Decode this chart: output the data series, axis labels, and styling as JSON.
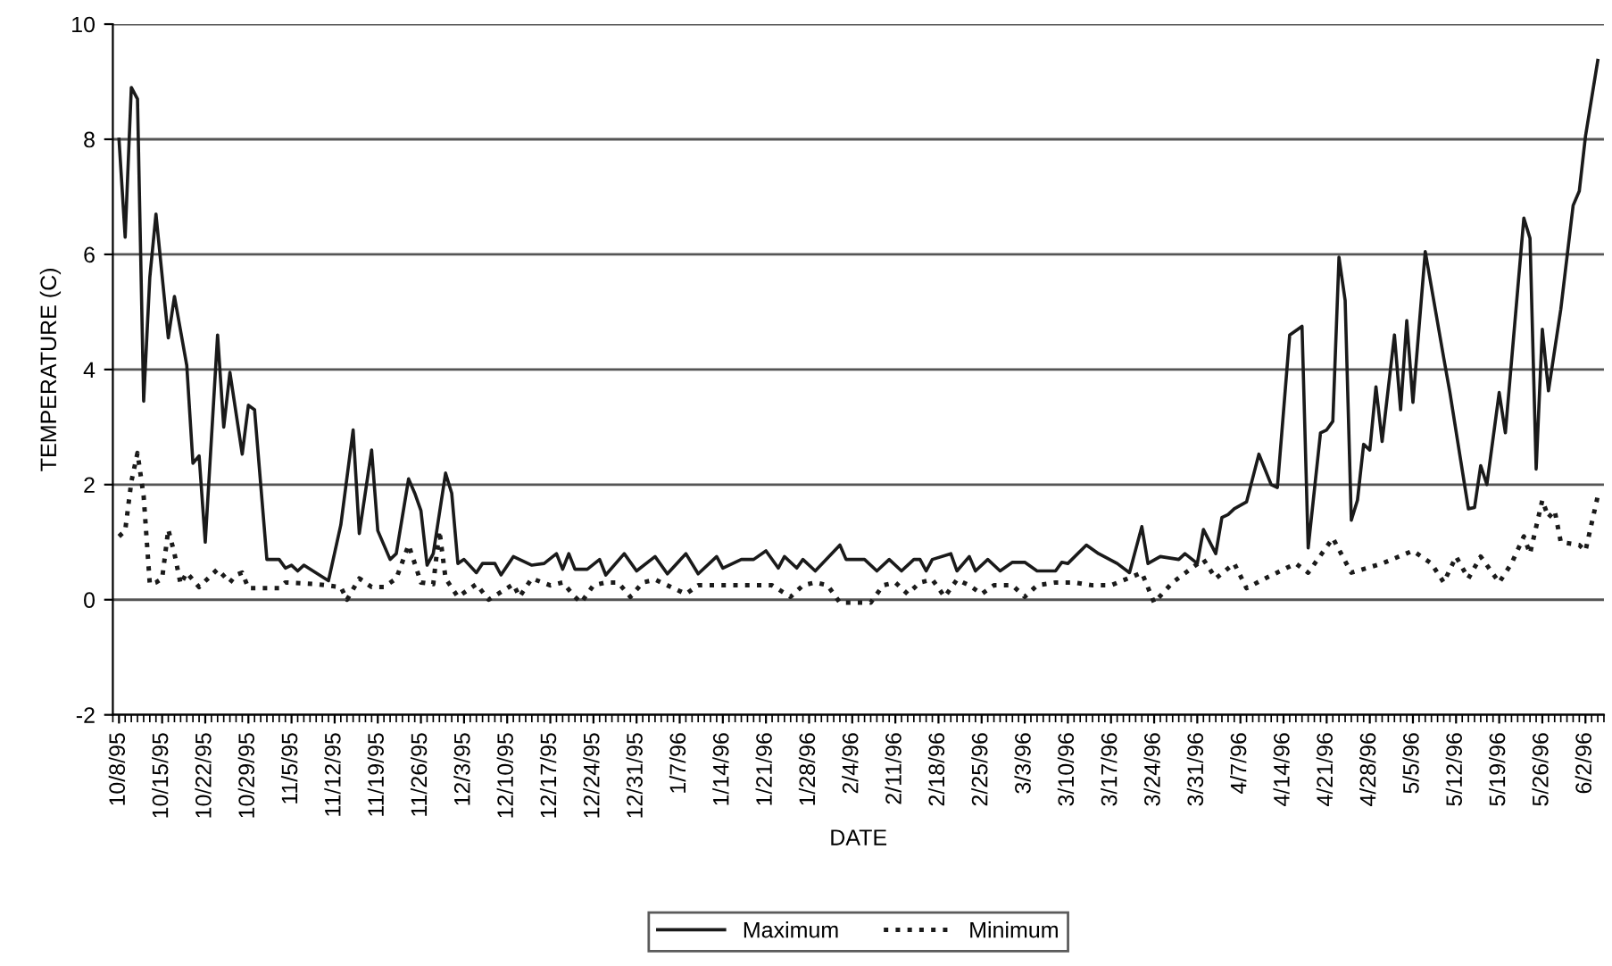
{
  "chart_data": {
    "type": "line",
    "xlabel": "DATE",
    "ylabel": "TEMPERATURE (C)",
    "xlim": [
      "1995-10-07",
      "1996-06-05"
    ],
    "ylim": [
      -2,
      10
    ],
    "yticks": [
      -2,
      0,
      2,
      4,
      6,
      8,
      10
    ],
    "grid": "y",
    "legend": "bottom",
    "xticks": [
      {
        "value": "1995-10-08",
        "label": "10/8/95"
      },
      {
        "value": "1995-10-15",
        "label": "10/15/95"
      },
      {
        "value": "1995-10-22",
        "label": "10/22/95"
      },
      {
        "value": "1995-10-29",
        "label": "10/29/95"
      },
      {
        "value": "1995-11-05",
        "label": "11/5/95"
      },
      {
        "value": "1995-11-12",
        "label": "11/12/95"
      },
      {
        "value": "1995-11-19",
        "label": "11/19/95"
      },
      {
        "value": "1995-11-26",
        "label": "11/26/95"
      },
      {
        "value": "1995-12-03",
        "label": "12/3/95"
      },
      {
        "value": "1995-12-10",
        "label": "12/10/95"
      },
      {
        "value": "1995-12-17",
        "label": "12/17/95"
      },
      {
        "value": "1995-12-24",
        "label": "12/24/95"
      },
      {
        "value": "1995-12-31",
        "label": "12/31/95"
      },
      {
        "value": "1996-01-07",
        "label": "1/7/96"
      },
      {
        "value": "1996-01-14",
        "label": "1/14/96"
      },
      {
        "value": "1996-01-21",
        "label": "1/21/96"
      },
      {
        "value": "1996-01-28",
        "label": "1/28/96"
      },
      {
        "value": "1996-02-04",
        "label": "2/4/96"
      },
      {
        "value": "1996-02-11",
        "label": "2/11/96"
      },
      {
        "value": "1996-02-18",
        "label": "2/18/96"
      },
      {
        "value": "1996-02-25",
        "label": "2/25/96"
      },
      {
        "value": "1996-03-03",
        "label": "3/3/96"
      },
      {
        "value": "1996-03-10",
        "label": "3/10/96"
      },
      {
        "value": "1996-03-17",
        "label": "3/17/96"
      },
      {
        "value": "1996-03-24",
        "label": "3/24/96"
      },
      {
        "value": "1996-03-31",
        "label": "3/31/96"
      },
      {
        "value": "1996-04-07",
        "label": "4/7/96"
      },
      {
        "value": "1996-04-14",
        "label": "4/14/96"
      },
      {
        "value": "1996-04-21",
        "label": "4/21/96"
      },
      {
        "value": "1996-04-28",
        "label": "4/28/96"
      },
      {
        "value": "1996-05-05",
        "label": "5/5/96"
      },
      {
        "value": "1996-05-12",
        "label": "5/12/96"
      },
      {
        "value": "1996-05-19",
        "label": "5/19/96"
      },
      {
        "value": "1996-05-26",
        "label": "5/26/96"
      },
      {
        "value": "1996-06-02",
        "label": "6/2/96"
      }
    ],
    "series": [
      {
        "name": "Maximum",
        "color": "#1a1a1a",
        "line_style": "solid",
        "x": [
          "1995-10-08",
          "1995-10-09",
          "1995-10-10",
          "1995-10-11",
          "1995-10-12",
          "1995-10-13",
          "1995-10-14",
          "1995-10-16",
          "1995-10-17",
          "1995-10-19",
          "1995-10-20",
          "1995-10-21",
          "1995-10-22",
          "1995-10-24",
          "1995-10-25",
          "1995-10-26",
          "1995-10-28",
          "1995-10-29",
          "1995-10-30",
          "1995-11-01",
          "1995-11-03",
          "1995-11-04",
          "1995-11-05",
          "1995-11-06",
          "1995-11-07",
          "1995-11-11",
          "1995-11-13",
          "1995-11-15",
          "1995-11-16",
          "1995-11-18",
          "1995-11-19",
          "1995-11-21",
          "1995-11-22",
          "1995-11-24",
          "1995-11-25",
          "1995-11-26",
          "1995-11-27",
          "1995-11-28",
          "1995-11-30",
          "1995-12-01",
          "1995-12-02",
          "1995-12-03",
          "1995-12-05",
          "1995-12-06",
          "1995-12-08",
          "1995-12-09",
          "1995-12-11",
          "1995-12-12",
          "1995-12-14",
          "1995-12-16",
          "1995-12-18",
          "1995-12-19",
          "1995-12-20",
          "1995-12-21",
          "1995-12-23",
          "1995-12-25",
          "1995-12-26",
          "1995-12-29",
          "1995-12-31",
          "1996-01-03",
          "1996-01-05",
          "1996-01-08",
          "1996-01-10",
          "1996-01-13",
          "1996-01-14",
          "1996-01-17",
          "1996-01-19",
          "1996-01-21",
          "1996-01-23",
          "1996-01-24",
          "1996-01-26",
          "1996-01-27",
          "1996-01-29",
          "1996-02-02",
          "1996-02-03",
          "1996-02-06",
          "1996-02-08",
          "1996-02-10",
          "1996-02-12",
          "1996-02-14",
          "1996-02-15",
          "1996-02-16",
          "1996-02-17",
          "1996-02-20",
          "1996-02-21",
          "1996-02-23",
          "1996-02-24",
          "1996-02-26",
          "1996-02-28",
          "1996-03-01",
          "1996-03-03",
          "1996-03-05",
          "1996-03-08",
          "1996-03-09",
          "1996-03-10",
          "1996-03-13",
          "1996-03-15",
          "1996-03-18",
          "1996-03-20",
          "1996-03-22",
          "1996-03-23",
          "1996-03-25",
          "1996-03-28",
          "1996-03-29",
          "1996-03-31",
          "1996-04-01",
          "1996-04-03",
          "1996-04-04",
          "1996-04-05",
          "1996-04-06",
          "1996-04-08",
          "1996-04-10",
          "1996-04-12",
          "1996-04-13",
          "1996-04-15",
          "1996-04-17",
          "1996-04-18",
          "1996-04-20",
          "1996-04-21",
          "1996-04-22",
          "1996-04-23",
          "1996-04-24",
          "1996-04-25",
          "1996-04-26",
          "1996-04-27",
          "1996-04-28",
          "1996-04-29",
          "1996-04-30",
          "1996-05-02",
          "1996-05-03",
          "1996-05-04",
          "1996-05-05",
          "1996-05-07",
          "1996-05-10",
          "1996-05-11",
          "1996-05-14",
          "1996-05-15",
          "1996-05-16",
          "1996-05-17",
          "1996-05-19",
          "1996-05-20",
          "1996-05-23",
          "1996-05-24",
          "1996-05-25",
          "1996-05-26",
          "1996-05-27",
          "1996-05-29",
          "1996-05-31",
          "1996-06-01",
          "1996-06-02",
          "1996-06-04"
        ],
        "values": [
          8.0,
          6.3,
          8.9,
          8.7,
          3.45,
          5.6,
          6.7,
          4.55,
          5.27,
          4.07,
          2.37,
          2.5,
          1.0,
          4.6,
          3.0,
          3.95,
          2.53,
          3.38,
          3.3,
          0.7,
          0.7,
          0.55,
          0.6,
          0.5,
          0.6,
          0.33,
          1.3,
          2.95,
          1.15,
          2.6,
          1.2,
          0.7,
          0.8,
          2.1,
          1.85,
          1.55,
          0.6,
          0.8,
          2.2,
          1.85,
          0.63,
          0.7,
          0.47,
          0.63,
          0.63,
          0.43,
          0.75,
          0.7,
          0.6,
          0.63,
          0.8,
          0.53,
          0.8,
          0.53,
          0.53,
          0.7,
          0.43,
          0.8,
          0.5,
          0.75,
          0.45,
          0.8,
          0.45,
          0.75,
          0.55,
          0.7,
          0.7,
          0.85,
          0.55,
          0.75,
          0.55,
          0.7,
          0.5,
          0.95,
          0.7,
          0.7,
          0.5,
          0.7,
          0.5,
          0.7,
          0.7,
          0.5,
          0.7,
          0.8,
          0.5,
          0.75,
          0.5,
          0.7,
          0.5,
          0.65,
          0.65,
          0.5,
          0.5,
          0.65,
          0.63,
          0.95,
          0.8,
          0.63,
          0.47,
          1.27,
          0.63,
          0.75,
          0.7,
          0.8,
          0.63,
          1.22,
          0.8,
          1.43,
          1.48,
          1.58,
          1.7,
          2.53,
          2.0,
          1.95,
          4.6,
          4.75,
          0.9,
          2.9,
          2.95,
          3.1,
          5.95,
          5.2,
          1.38,
          1.73,
          2.7,
          2.6,
          3.7,
          2.75,
          4.6,
          3.3,
          4.85,
          3.43,
          6.05,
          4.2,
          3.6,
          1.58,
          1.6,
          2.33,
          2.0,
          3.6,
          2.9,
          6.63,
          6.28,
          2.27,
          4.7,
          3.63,
          5.05,
          6.85,
          7.1,
          8.05,
          9.37
        ]
      },
      {
        "name": "Minimum",
        "color": "#1a1a1a",
        "line_style": "dotted",
        "x": [
          "1995-10-08",
          "1995-10-09",
          "1995-10-10",
          "1995-10-11",
          "1995-10-12",
          "1995-10-13",
          "1995-10-14",
          "1995-10-15",
          "1995-10-16",
          "1995-10-17",
          "1995-10-18",
          "1995-10-19",
          "1995-10-21",
          "1995-10-24",
          "1995-10-26",
          "1995-10-27",
          "1995-10-28",
          "1995-10-29",
          "1995-11-03",
          "1995-11-04",
          "1995-11-09",
          "1995-11-13",
          "1995-11-14",
          "1995-11-16",
          "1995-11-18",
          "1995-11-20",
          "1995-11-22",
          "1995-11-24",
          "1995-11-25",
          "1995-11-26",
          "1995-11-28",
          "1995-11-29",
          "1995-11-30",
          "1995-12-02",
          "1995-12-05",
          "1995-12-07",
          "1995-12-11",
          "1995-12-12",
          "1995-12-14",
          "1995-12-17",
          "1995-12-19",
          "1995-12-21",
          "1995-12-22",
          "1995-12-24",
          "1995-12-26",
          "1995-12-28",
          "1995-12-30",
          "1996-01-01",
          "1996-01-03",
          "1996-01-05",
          "1996-01-08",
          "1996-01-10",
          "1996-01-14",
          "1996-01-18",
          "1996-01-22",
          "1996-01-25",
          "1996-01-27",
          "1996-01-29",
          "1996-01-31",
          "1996-02-02",
          "1996-02-05",
          "1996-02-07",
          "1996-02-09",
          "1996-02-11",
          "1996-02-13",
          "1996-02-15",
          "1996-02-17",
          "1996-02-19",
          "1996-02-21",
          "1996-02-23",
          "1996-02-25",
          "1996-02-27",
          "1996-03-01",
          "1996-03-03",
          "1996-03-05",
          "1996-03-08",
          "1996-03-11",
          "1996-03-14",
          "1996-03-17",
          "1996-03-22",
          "1996-03-24",
          "1996-03-27",
          "1996-04-01",
          "1996-04-03",
          "1996-04-06",
          "1996-04-08",
          "1996-04-11",
          "1996-04-16",
          "1996-04-18",
          "1996-04-22",
          "1996-04-25",
          "1996-04-30",
          "1996-05-05",
          "1996-05-08",
          "1996-05-10",
          "1996-05-12",
          "1996-05-14",
          "1996-05-16",
          "1996-05-19",
          "1996-05-21",
          "1996-05-23",
          "1996-05-24",
          "1996-05-26",
          "1996-05-27",
          "1996-05-28",
          "1996-05-29",
          "1996-06-01",
          "1996-06-02",
          "1996-06-04"
        ],
        "values": [
          1.1,
          1.2,
          2.05,
          2.55,
          1.8,
          0.27,
          0.3,
          0.37,
          1.22,
          0.8,
          0.27,
          0.47,
          0.22,
          0.53,
          0.3,
          0.43,
          0.47,
          0.2,
          0.2,
          0.3,
          0.27,
          0.22,
          0.0,
          0.37,
          0.22,
          0.22,
          0.37,
          0.95,
          0.63,
          0.3,
          0.27,
          1.2,
          0.37,
          0.05,
          0.27,
          0.0,
          0.27,
          0.05,
          0.37,
          0.25,
          0.3,
          0.05,
          -0.05,
          0.25,
          0.3,
          0.3,
          0.05,
          0.3,
          0.35,
          0.25,
          0.1,
          0.25,
          0.25,
          0.25,
          0.25,
          0.05,
          0.25,
          0.3,
          0.25,
          -0.05,
          -0.05,
          -0.05,
          0.25,
          0.3,
          0.1,
          0.3,
          0.35,
          0.05,
          0.35,
          0.25,
          0.1,
          0.25,
          0.25,
          0.05,
          0.25,
          0.3,
          0.3,
          0.25,
          0.25,
          0.47,
          -0.05,
          0.3,
          0.7,
          0.37,
          0.63,
          0.2,
          0.37,
          0.63,
          0.47,
          1.07,
          0.47,
          0.63,
          0.85,
          0.63,
          0.3,
          0.75,
          0.37,
          0.75,
          0.3,
          0.63,
          1.1,
          0.8,
          1.73,
          1.43,
          1.55,
          1.0,
          0.95,
          0.85,
          1.8
        ]
      }
    ]
  }
}
